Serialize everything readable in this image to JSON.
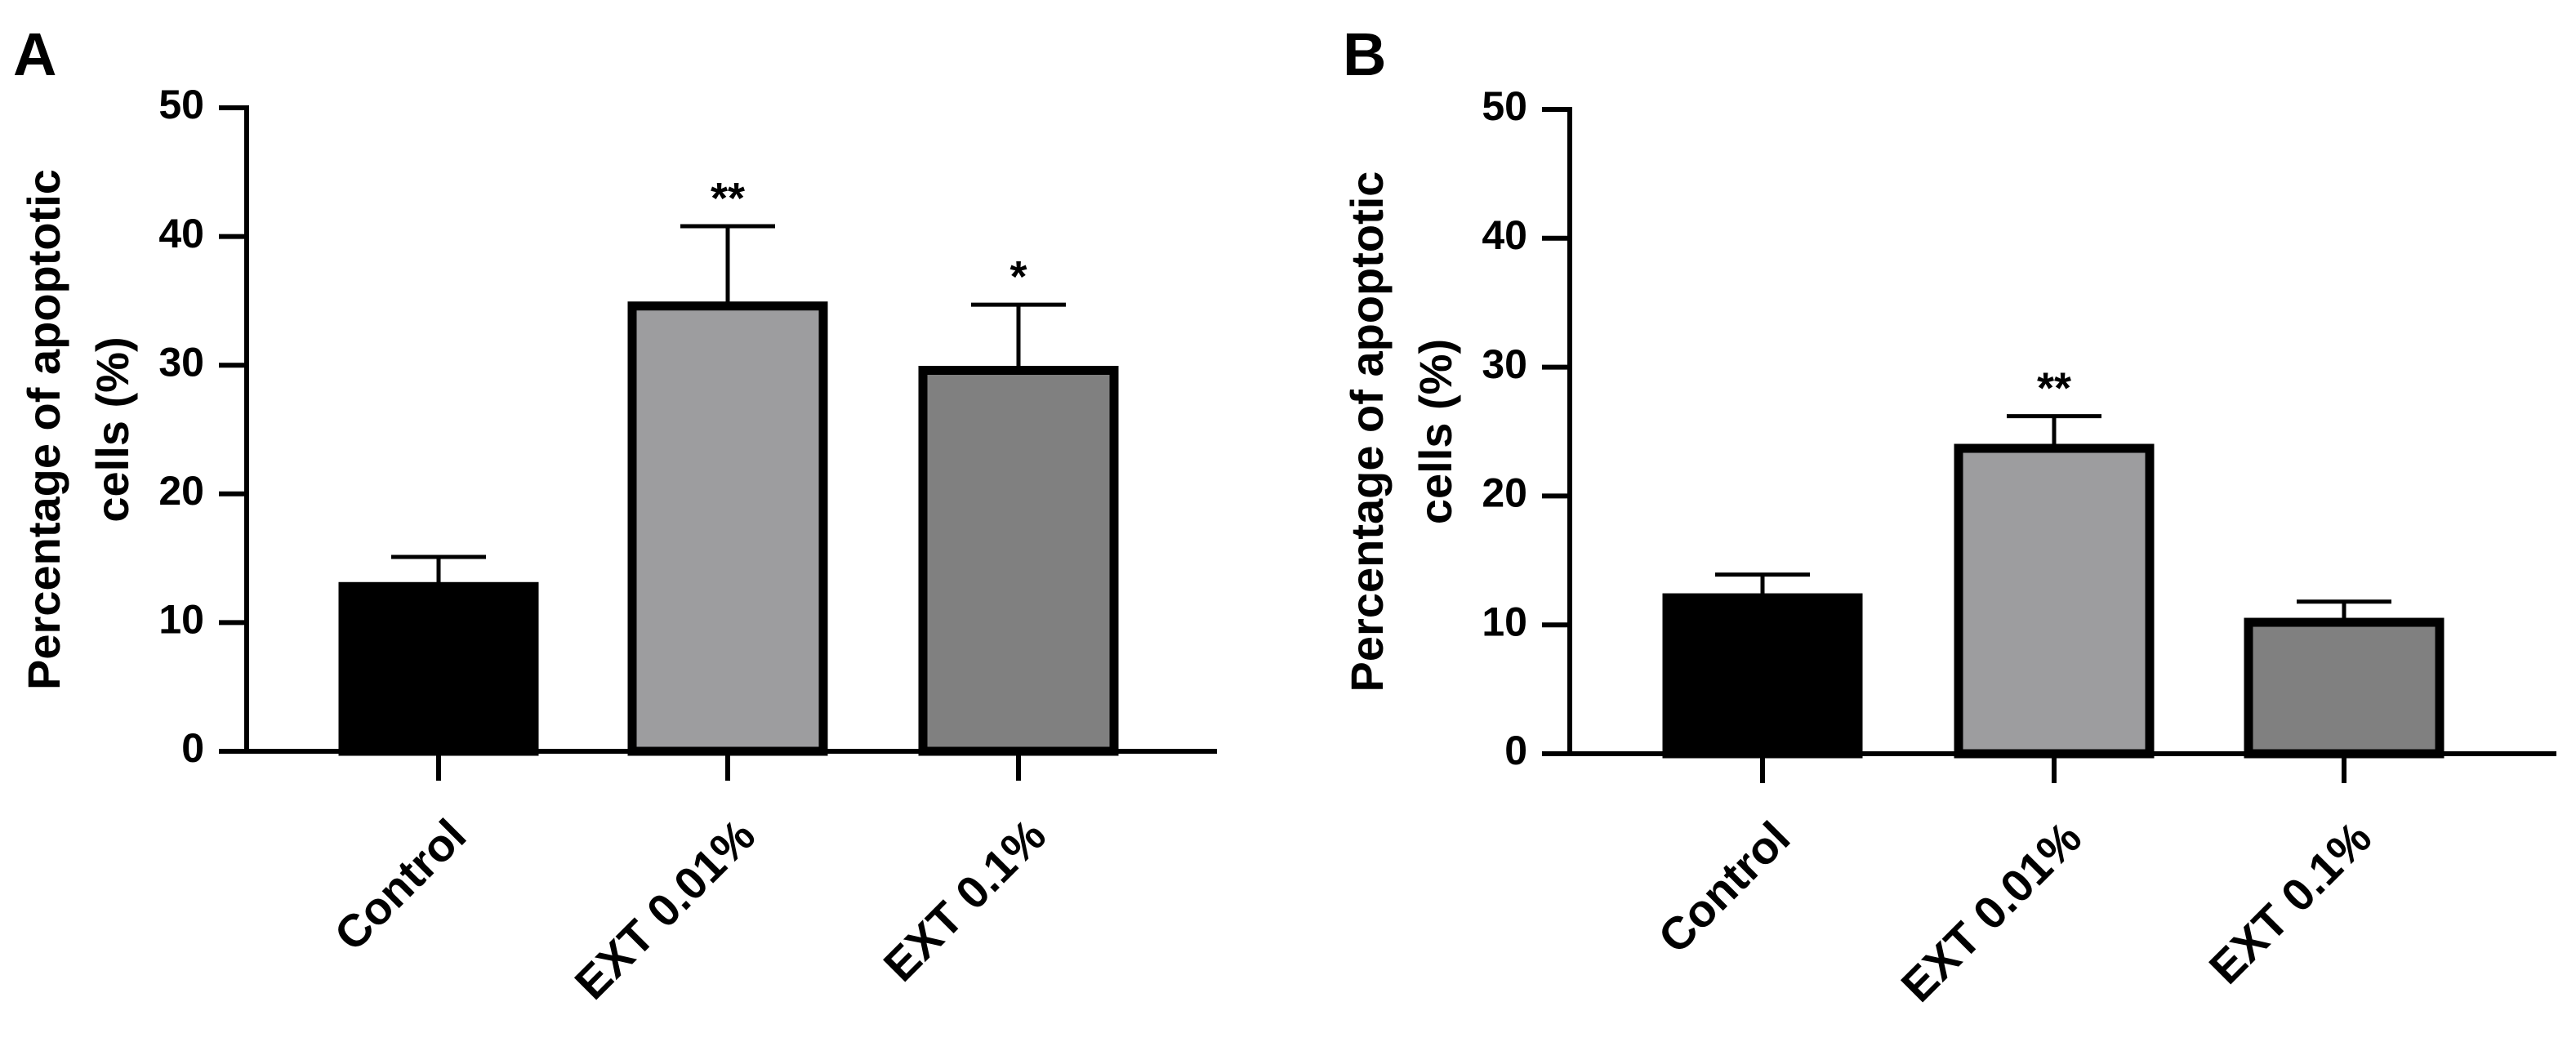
{
  "colors": {
    "axis": "#000000",
    "bar_stroke": "#000000"
  },
  "chart_data": [
    {
      "panel_label": "A",
      "type": "bar",
      "title": "",
      "xlabel": "",
      "ylabel_lines": [
        "Percentage of apoptotic",
        "cells (%)"
      ],
      "ylim": [
        0,
        50
      ],
      "yticks": [
        0,
        10,
        20,
        30,
        40,
        50
      ],
      "ytick_labels": [
        "0",
        "10",
        "20",
        "30",
        "40",
        "50"
      ],
      "categories": [
        "Control",
        "EXT 0.01%",
        "EXT 0.1%"
      ],
      "values": [
        12.8,
        34.6,
        29.6
      ],
      "errors": [
        2.3,
        6.2,
        5.1
      ],
      "significance": [
        "",
        "**",
        "*"
      ],
      "bar_fills": [
        "#000000",
        "#9d9d9f",
        "#808080"
      ],
      "grid": false
    },
    {
      "panel_label": "B",
      "type": "bar",
      "title": "",
      "xlabel": "",
      "ylabel_lines": [
        "Percentage of apoptotic",
        "cells (%)"
      ],
      "ylim": [
        0,
        50
      ],
      "yticks": [
        0,
        10,
        20,
        30,
        40,
        50
      ],
      "ytick_labels": [
        "0",
        "10",
        "20",
        "30",
        "40",
        "50"
      ],
      "categories": [
        "Control",
        "EXT 0.01%",
        "EXT 0.1%"
      ],
      "values": [
        12.1,
        23.7,
        10.2
      ],
      "errors": [
        1.8,
        2.5,
        1.6
      ],
      "significance": [
        "",
        "**",
        ""
      ],
      "bar_fills": [
        "#000000",
        "#9d9d9f",
        "#808080"
      ],
      "grid": false
    }
  ]
}
